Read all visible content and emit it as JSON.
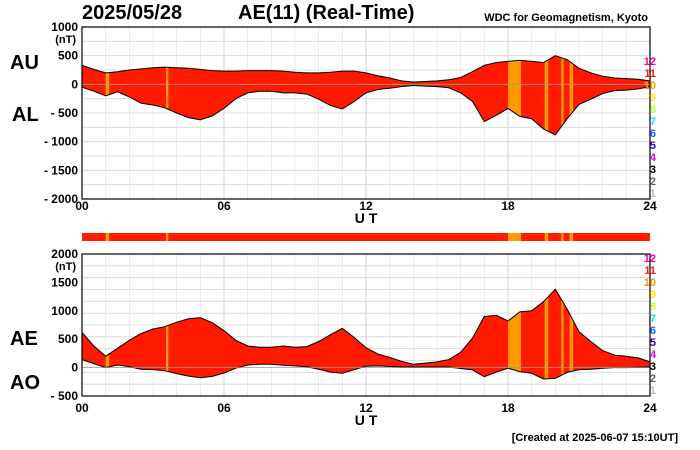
{
  "header": {
    "date": "2025/05/28",
    "title": "AE(11) (Real-Time)",
    "organization": "WDC for Geomagnetism, Kyoto"
  },
  "footer": {
    "created": "[Created at 2025-06-07 15:10UT]"
  },
  "legend": {
    "items": [
      {
        "label": "12",
        "color": "#ff0099"
      },
      {
        "label": "11",
        "color": "#ff1a00"
      },
      {
        "label": "10",
        "color": "#ff9900"
      },
      {
        "label": "9",
        "color": "#ffe600"
      },
      {
        "label": "8",
        "color": "#b3ff33"
      },
      {
        "label": "7",
        "color": "#00e6e6"
      },
      {
        "label": "6",
        "color": "#0066ff"
      },
      {
        "label": "5",
        "color": "#3300cc"
      },
      {
        "label": "4",
        "color": "#cc00ff"
      },
      {
        "label": "3",
        "color": "#000000"
      },
      {
        "label": "2",
        "color": "#666666"
      },
      {
        "label": "1",
        "color": "#bbbbbb"
      }
    ]
  },
  "chart_data": [
    {
      "type": "area",
      "side_labels": [
        "AU",
        "AL"
      ],
      "ylabel": "(nT)",
      "xlabel": "U T",
      "xlim": [
        0,
        24
      ],
      "ylim": [
        -2000,
        1000
      ],
      "x_ticks": [
        0,
        6,
        12,
        18,
        24
      ],
      "x_tick_labels": [
        "00",
        "06",
        "12",
        "18",
        "24"
      ],
      "y_ticks": [
        1000,
        500,
        0,
        -500,
        -1000,
        -1500,
        -2000
      ],
      "y_tick_labels": [
        "1000",
        "500",
        "0",
        "- 500",
        "- 1000",
        "- 1500",
        "- 2000"
      ],
      "grid": true,
      "series": [
        {
          "name": "AU",
          "x": [
            0,
            0.5,
            1,
            1.5,
            2,
            2.5,
            3,
            3.5,
            4,
            4.5,
            5,
            5.5,
            6,
            6.5,
            7,
            7.5,
            8,
            8.5,
            9,
            9.5,
            10,
            10.5,
            11,
            11.5,
            12,
            12.5,
            13,
            13.5,
            14,
            14.5,
            15,
            15.5,
            16,
            16.5,
            17,
            17.5,
            18,
            18.5,
            19,
            19.5,
            20,
            20.5,
            21,
            21.5,
            22,
            22.5,
            23,
            23.5,
            24
          ],
          "values": [
            330,
            260,
            200,
            220,
            250,
            270,
            290,
            300,
            290,
            280,
            260,
            240,
            230,
            230,
            240,
            240,
            240,
            230,
            210,
            200,
            200,
            210,
            230,
            230,
            200,
            150,
            110,
            60,
            40,
            50,
            60,
            80,
            120,
            220,
            330,
            380,
            400,
            420,
            400,
            380,
            500,
            430,
            280,
            200,
            140,
            110,
            100,
            90,
            60
          ]
        },
        {
          "name": "AL",
          "x": [
            0,
            0.5,
            1,
            1.5,
            2,
            2.5,
            3,
            3.5,
            4,
            4.5,
            5,
            5.5,
            6,
            6.5,
            7,
            7.5,
            8,
            8.5,
            9,
            9.5,
            10,
            10.5,
            11,
            11.5,
            12,
            12.5,
            13,
            13.5,
            14,
            14.5,
            15,
            15.5,
            16,
            16.5,
            17,
            17.5,
            18,
            18.5,
            19,
            19.5,
            20,
            20.5,
            21,
            21.5,
            22,
            22.5,
            23,
            23.5,
            24
          ],
          "values": [
            -50,
            -120,
            -200,
            -130,
            -220,
            -330,
            -360,
            -410,
            -500,
            -580,
            -620,
            -550,
            -420,
            -250,
            -150,
            -120,
            -120,
            -150,
            -150,
            -170,
            -260,
            -370,
            -430,
            -300,
            -150,
            -90,
            -70,
            -40,
            -20,
            -30,
            -40,
            -60,
            -150,
            -300,
            -650,
            -540,
            -420,
            -560,
            -600,
            -780,
            -880,
            -600,
            -350,
            -260,
            -160,
            -110,
            -100,
            -80,
            -40
          ]
        }
      ]
    },
    {
      "type": "area",
      "side_labels": [
        "AE",
        "AO"
      ],
      "ylabel": "(nT)",
      "xlabel": "U T",
      "xlim": [
        0,
        24
      ],
      "ylim": [
        -500,
        2000
      ],
      "x_ticks": [
        0,
        6,
        12,
        18,
        24
      ],
      "x_tick_labels": [
        "00",
        "06",
        "12",
        "18",
        "24"
      ],
      "y_ticks": [
        2000,
        1500,
        1000,
        500,
        0,
        -500
      ],
      "y_tick_labels": [
        "2000",
        "1500",
        "1000",
        "500",
        "0",
        "- 500"
      ],
      "grid": true,
      "series": [
        {
          "name": "AE",
          "x": [
            0,
            0.5,
            1,
            1.5,
            2,
            2.5,
            3,
            3.5,
            4,
            4.5,
            5,
            5.5,
            6,
            6.5,
            7,
            7.5,
            8,
            8.5,
            9,
            9.5,
            10,
            10.5,
            11,
            11.5,
            12,
            12.5,
            13,
            13.5,
            14,
            14.5,
            15,
            15.5,
            16,
            16.5,
            17,
            17.5,
            18,
            18.5,
            19,
            19.5,
            20,
            20.5,
            21,
            21.5,
            22,
            22.5,
            23,
            23.5,
            24
          ],
          "values": [
            620,
            380,
            200,
            340,
            480,
            600,
            680,
            720,
            800,
            860,
            880,
            790,
            650,
            480,
            380,
            360,
            360,
            380,
            360,
            370,
            460,
            580,
            690,
            530,
            350,
            240,
            180,
            110,
            60,
            80,
            100,
            140,
            270,
            520,
            900,
            920,
            820,
            980,
            1000,
            1160,
            1380,
            1030,
            630,
            460,
            300,
            220,
            200,
            170,
            100
          ]
        },
        {
          "name": "AO",
          "x": [
            0,
            0.5,
            1,
            1.5,
            2,
            2.5,
            3,
            3.5,
            4,
            4.5,
            5,
            5.5,
            6,
            6.5,
            7,
            7.5,
            8,
            8.5,
            9,
            9.5,
            10,
            10.5,
            11,
            11.5,
            12,
            12.5,
            13,
            13.5,
            14,
            14.5,
            15,
            15.5,
            16,
            16.5,
            17,
            17.5,
            18,
            18.5,
            19,
            19.5,
            20,
            20.5,
            21,
            21.5,
            22,
            22.5,
            23,
            23.5,
            24
          ],
          "values": [
            140,
            70,
            0,
            45,
            15,
            -30,
            -35,
            -55,
            -105,
            -150,
            -180,
            -155,
            -95,
            -10,
            45,
            60,
            60,
            40,
            30,
            15,
            -30,
            -80,
            -100,
            -35,
            25,
            30,
            20,
            10,
            10,
            10,
            10,
            10,
            -15,
            -40,
            -160,
            -80,
            -10,
            -70,
            -100,
            -200,
            -190,
            -85,
            -35,
            -30,
            -10,
            0,
            0,
            5,
            10
          ]
        }
      ]
    }
  ]
}
